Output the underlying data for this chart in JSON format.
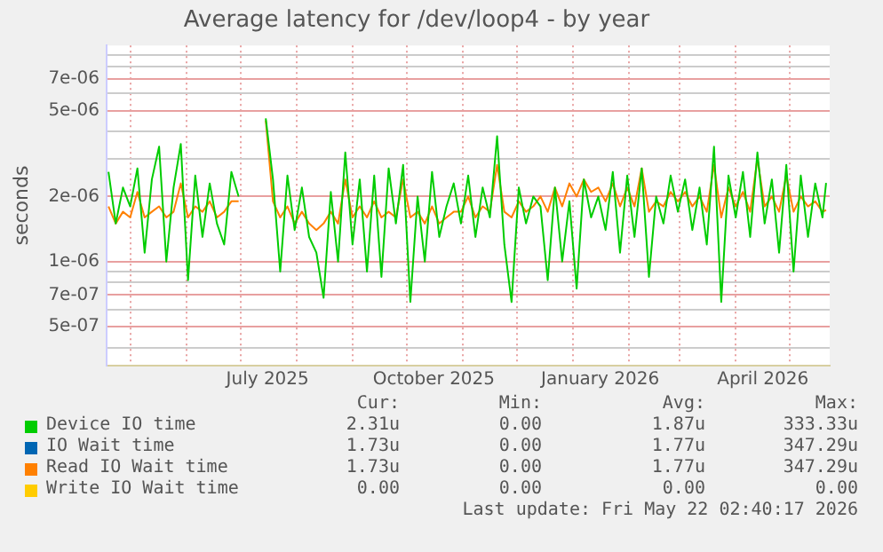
{
  "chart_data": {
    "type": "line",
    "title": "Average latency for /dev/loop4 - by year",
    "ylabel": "seconds",
    "log": true,
    "grid": true,
    "legend": "bottom",
    "marker": "none",
    "line_style": "solid",
    "xlim": [
      "2025-04-18",
      "2026-05-23"
    ],
    "xticks": [
      {
        "value": "2025-05-01",
        "label": null
      },
      {
        "value": "2025-06-01",
        "label": null
      },
      {
        "value": "2025-07-01",
        "label": null
      },
      {
        "value": "2025-07-16",
        "label": "July 2025"
      },
      {
        "value": "2025-08-01",
        "label": null
      },
      {
        "value": "2025-09-01",
        "label": null
      },
      {
        "value": "2025-10-01",
        "label": null
      },
      {
        "value": "2025-10-16",
        "label": "October 2025"
      },
      {
        "value": "2025-11-01",
        "label": null
      },
      {
        "value": "2025-12-01",
        "label": null
      },
      {
        "value": "2026-01-01",
        "label": null
      },
      {
        "value": "2026-01-16",
        "label": "January 2026"
      },
      {
        "value": "2026-02-01",
        "label": null
      },
      {
        "value": "2026-03-01",
        "label": null
      },
      {
        "value": "2026-04-01",
        "label": null
      },
      {
        "value": "2026-04-16",
        "label": "April 2026"
      },
      {
        "value": "2026-05-01",
        "label": null
      }
    ],
    "ylim": [
      3.3e-07,
      1e-05
    ],
    "yticks": [
      {
        "value": 4e-07,
        "label": null
      },
      {
        "value": 5e-07,
        "label": "5e-07"
      },
      {
        "value": 6e-07,
        "label": null
      },
      {
        "value": 7e-07,
        "label": "7e-07"
      },
      {
        "value": 8e-07,
        "label": null
      },
      {
        "value": 9e-07,
        "label": null
      },
      {
        "value": 1e-06,
        "label": "1e-06"
      },
      {
        "value": 2e-06,
        "label": "2e-06"
      },
      {
        "value": 3e-06,
        "label": null
      },
      {
        "value": 4e-06,
        "label": null
      },
      {
        "value": 5e-06,
        "label": "5e-06"
      },
      {
        "value": 6e-06,
        "label": null
      },
      {
        "value": 7e-06,
        "label": "7e-06"
      },
      {
        "value": 8e-06,
        "label": null
      },
      {
        "value": 9e-06,
        "label": null
      }
    ],
    "x": [
      "2025-04-19",
      "2025-04-23",
      "2025-04-27",
      "2025-05-01",
      "2025-05-05",
      "2025-05-09",
      "2025-05-13",
      "2025-05-17",
      "2025-05-21",
      "2025-05-25",
      "2025-05-29",
      "2025-06-02",
      "2025-06-06",
      "2025-06-10",
      "2025-06-14",
      "2025-06-18",
      "2025-06-22",
      "2025-06-26",
      "2025-06-30",
      "2025-07-07",
      "2025-07-15",
      "2025-07-19",
      "2025-07-23",
      "2025-07-27",
      "2025-07-31",
      "2025-08-04",
      "2025-08-08",
      "2025-08-12",
      "2025-08-16",
      "2025-08-20",
      "2025-08-24",
      "2025-08-28",
      "2025-09-01",
      "2025-09-05",
      "2025-09-09",
      "2025-09-13",
      "2025-09-17",
      "2025-09-21",
      "2025-09-25",
      "2025-09-29",
      "2025-10-03",
      "2025-10-07",
      "2025-10-11",
      "2025-10-15",
      "2025-10-19",
      "2025-10-23",
      "2025-10-27",
      "2025-10-31",
      "2025-11-04",
      "2025-11-08",
      "2025-11-12",
      "2025-11-16",
      "2025-11-20",
      "2025-11-24",
      "2025-11-28",
      "2025-12-02",
      "2025-12-06",
      "2025-12-10",
      "2025-12-14",
      "2025-12-18",
      "2025-12-22",
      "2025-12-26",
      "2025-12-30",
      "2026-01-03",
      "2026-01-07",
      "2026-01-11",
      "2026-01-15",
      "2026-01-19",
      "2026-01-23",
      "2026-01-27",
      "2026-01-31",
      "2026-02-04",
      "2026-02-08",
      "2026-02-12",
      "2026-02-16",
      "2026-02-20",
      "2026-02-24",
      "2026-02-28",
      "2026-03-04",
      "2026-03-08",
      "2026-03-12",
      "2026-03-16",
      "2026-03-20",
      "2026-03-24",
      "2026-03-28",
      "2026-04-01",
      "2026-04-05",
      "2026-04-09",
      "2026-04-13",
      "2026-04-17",
      "2026-04-21",
      "2026-04-25",
      "2026-04-29",
      "2026-05-03",
      "2026-05-07",
      "2026-05-11",
      "2026-05-15",
      "2026-05-19",
      "2026-05-21"
    ],
    "series": [
      {
        "name": "Device IO time",
        "color": "#00cc00",
        "values": [
          2.6e-06,
          1.5e-06,
          2.2e-06,
          1.8e-06,
          2.7e-06,
          1.1e-06,
          2.4e-06,
          3.4e-06,
          1e-06,
          2.2e-06,
          3.5e-06,
          8.2e-07,
          2.5e-06,
          1.3e-06,
          2.3e-06,
          1.5e-06,
          1.2e-06,
          2.6e-06,
          2e-06,
          null,
          4.6e-06,
          2.4e-06,
          9e-07,
          2.5e-06,
          1.4e-06,
          2.2e-06,
          1.3e-06,
          1.1e-06,
          6.8e-07,
          2.1e-06,
          1e-06,
          3.2e-06,
          1.2e-06,
          2.4e-06,
          9e-07,
          2.5e-06,
          8.5e-07,
          2.7e-06,
          1.5e-06,
          2.8e-06,
          6.5e-07,
          2e-06,
          1e-06,
          2.6e-06,
          1.3e-06,
          1.8e-06,
          2.3e-06,
          1.5e-06,
          2.5e-06,
          1.3e-06,
          2.2e-06,
          1.6e-06,
          3.8e-06,
          1.2e-06,
          6.5e-07,
          2.2e-06,
          1.5e-06,
          2e-06,
          1.8e-06,
          8.2e-07,
          2.2e-06,
          1e-06,
          1.9e-06,
          7.5e-07,
          2.4e-06,
          1.6e-06,
          2e-06,
          1.4e-06,
          2.6e-06,
          1.1e-06,
          2.5e-06,
          1.3e-06,
          2.7e-06,
          8.5e-07,
          2e-06,
          1.5e-06,
          2.5e-06,
          1.7e-06,
          2.4e-06,
          1.4e-06,
          2.2e-06,
          1.2e-06,
          3.4e-06,
          6.5e-07,
          2.5e-06,
          1.6e-06,
          2.6e-06,
          1.3e-06,
          3.2e-06,
          1.5e-06,
          2.4e-06,
          1.1e-06,
          2.8e-06,
          9e-07,
          2.5e-06,
          1.3e-06,
          2.3e-06,
          1.6e-06,
          2.31e-06
        ]
      },
      {
        "name": "IO Wait time",
        "color": "#0066b3",
        "values": [
          null,
          null,
          null,
          null,
          null,
          null,
          null,
          null,
          null,
          null,
          null,
          null,
          null,
          null,
          null,
          null,
          null,
          null,
          null,
          null,
          null,
          null,
          null,
          null,
          null,
          null,
          null,
          null,
          null,
          null,
          null,
          null,
          null,
          null,
          null,
          null,
          null,
          null,
          null,
          null,
          null,
          null,
          null,
          null,
          null,
          null,
          null,
          null,
          null,
          null,
          null,
          null,
          null,
          null,
          null,
          null,
          null,
          null,
          null,
          null,
          null,
          null,
          null,
          null,
          null,
          null,
          null,
          null,
          null,
          null,
          null,
          null,
          null,
          null,
          null,
          null,
          null,
          null,
          null,
          null,
          null,
          null,
          null,
          null,
          null,
          null,
          null,
          null,
          null,
          null,
          null,
          null,
          null,
          null,
          null,
          null,
          null,
          null,
          null
        ]
      },
      {
        "name": "Read IO Wait time",
        "color": "#ff8000",
        "values": [
          1.8e-06,
          1.5e-06,
          1.7e-06,
          1.6e-06,
          2.1e-06,
          1.6e-06,
          1.7e-06,
          1.8e-06,
          1.6e-06,
          1.7e-06,
          2.3e-06,
          1.6e-06,
          1.8e-06,
          1.7e-06,
          1.9e-06,
          1.6e-06,
          1.7e-06,
          1.9e-06,
          1.9e-06,
          null,
          4.5e-06,
          1.9e-06,
          1.6e-06,
          1.8e-06,
          1.5e-06,
          1.7e-06,
          1.5e-06,
          1.4e-06,
          1.5e-06,
          1.7e-06,
          1.5e-06,
          2.4e-06,
          1.6e-06,
          1.8e-06,
          1.6e-06,
          1.9e-06,
          1.6e-06,
          1.7e-06,
          1.6e-06,
          2.4e-06,
          1.6e-06,
          1.7e-06,
          1.5e-06,
          1.8e-06,
          1.5e-06,
          1.6e-06,
          1.7e-06,
          1.7e-06,
          2e-06,
          1.6e-06,
          1.8e-06,
          1.7e-06,
          2.8e-06,
          1.7e-06,
          1.6e-06,
          1.9e-06,
          1.7e-06,
          1.8e-06,
          2e-06,
          1.7e-06,
          2.2e-06,
          1.8e-06,
          2.3e-06,
          2e-06,
          2.4e-06,
          2.1e-06,
          2.2e-06,
          1.9e-06,
          2.3e-06,
          1.8e-06,
          2.2e-06,
          1.8e-06,
          2.7e-06,
          1.7e-06,
          1.9e-06,
          1.8e-06,
          2.1e-06,
          1.9e-06,
          2.1e-06,
          1.8e-06,
          2e-06,
          1.7e-06,
          2.8e-06,
          1.6e-06,
          2.2e-06,
          1.8e-06,
          2.1e-06,
          1.7e-06,
          3e-06,
          1.8e-06,
          2e-06,
          1.7e-06,
          2.5e-06,
          1.7e-06,
          2e-06,
          1.8e-06,
          1.9e-06,
          1.7e-06,
          1.73e-06
        ]
      },
      {
        "name": "Write IO Wait time",
        "color": "#ffcc00",
        "values": [
          null,
          null,
          null,
          null,
          null,
          null,
          null,
          null,
          null,
          null,
          null,
          null,
          null,
          null,
          null,
          null,
          null,
          null,
          null,
          null,
          null,
          null,
          null,
          null,
          null,
          null,
          null,
          null,
          null,
          null,
          null,
          null,
          null,
          null,
          null,
          null,
          null,
          null,
          null,
          null,
          null,
          null,
          null,
          null,
          null,
          null,
          null,
          null,
          null,
          null,
          null,
          null,
          null,
          null,
          null,
          null,
          null,
          null,
          null,
          null,
          null,
          null,
          null,
          null,
          null,
          null,
          null,
          null,
          null,
          null,
          null,
          null,
          null,
          null,
          null,
          null,
          null,
          null,
          null,
          null,
          null,
          null,
          null,
          null,
          null,
          null,
          null,
          null,
          null,
          null,
          null,
          null,
          null,
          null,
          null,
          null,
          null,
          null,
          null
        ]
      }
    ],
    "annotations": [
      "Cur:",
      "Min:",
      "Avg:",
      "Max:",
      "2.31u",
      "0.00",
      "1.87u",
      "333.33u",
      "1.73u",
      "0.00",
      "1.77u",
      "347.29u",
      "1.73u",
      "0.00",
      "1.77u",
      "347.29u",
      "0.00",
      "0.00",
      "0.00",
      "0.00",
      "Last update: Fri May 22 02:40:17 2026"
    ]
  }
}
